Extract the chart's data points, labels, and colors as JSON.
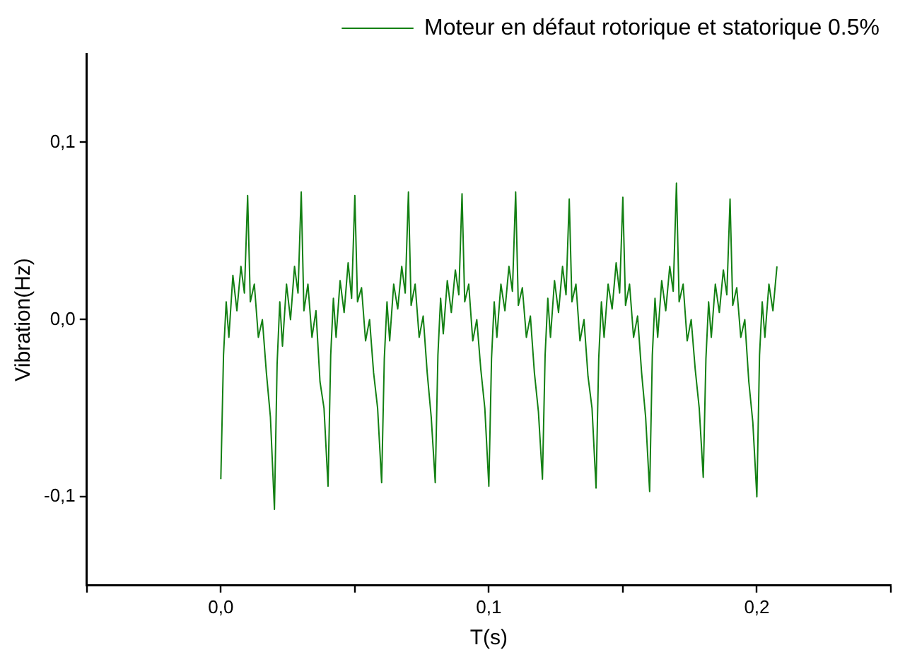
{
  "chart_data": {
    "type": "line",
    "xlabel": "T(s)",
    "ylabel": "Vibration(Hz)",
    "xlim": [
      -0.05,
      0.25
    ],
    "xticks": [
      {
        "value": -0.05,
        "label": null
      },
      {
        "value": 0,
        "label": "0,0"
      },
      {
        "value": 0.05,
        "label": null
      },
      {
        "value": 0.1,
        "label": "0,1"
      },
      {
        "value": 0.15,
        "label": null
      },
      {
        "value": 0.2,
        "label": "0,2"
      },
      {
        "value": 0.25,
        "label": null
      }
    ],
    "ylim": [
      -0.15,
      0.15
    ],
    "yticks": [
      {
        "value": -0.1,
        "label": "-0,1"
      },
      {
        "value": 0,
        "label": "0,0"
      },
      {
        "value": 0.1,
        "label": "0,1"
      }
    ],
    "legend": "top right",
    "marker": "none",
    "line_style": "solid",
    "grid": false,
    "series": [
      {
        "name": "Moteur en défaut rotorique et statorique 0.5%",
        "color": "#138013",
        "x": [
          0,
          0.001,
          0.002,
          0.003,
          0.0045,
          0.006,
          0.0075,
          0.0088,
          0.01,
          0.011,
          0.0125,
          0.014,
          0.0155,
          0.017,
          0.0185,
          0.02,
          0.021,
          0.022,
          0.023,
          0.0245,
          0.026,
          0.0275,
          0.0288,
          0.03,
          0.031,
          0.0325,
          0.034,
          0.0355,
          0.037,
          0.0385,
          0.04,
          0.041,
          0.042,
          0.043,
          0.0445,
          0.046,
          0.0475,
          0.0488,
          0.05,
          0.051,
          0.0525,
          0.054,
          0.0555,
          0.057,
          0.0585,
          0.06,
          0.061,
          0.062,
          0.063,
          0.0645,
          0.066,
          0.0675,
          0.0688,
          0.07,
          0.071,
          0.0725,
          0.074,
          0.0755,
          0.077,
          0.0785,
          0.08,
          0.081,
          0.082,
          0.083,
          0.0845,
          0.086,
          0.0875,
          0.0888,
          0.09,
          0.091,
          0.0925,
          0.094,
          0.0955,
          0.097,
          0.0985,
          0.1,
          0.101,
          0.102,
          0.103,
          0.1045,
          0.106,
          0.1075,
          0.1088,
          0.11,
          0.111,
          0.1125,
          0.114,
          0.1155,
          0.117,
          0.1185,
          0.12,
          0.121,
          0.122,
          0.123,
          0.1245,
          0.126,
          0.1275,
          0.1288,
          0.13,
          0.131,
          0.1325,
          0.134,
          0.1355,
          0.137,
          0.1385,
          0.14,
          0.141,
          0.142,
          0.143,
          0.1445,
          0.146,
          0.1475,
          0.1488,
          0.15,
          0.151,
          0.1525,
          0.154,
          0.1555,
          0.157,
          0.1585,
          0.16,
          0.161,
          0.162,
          0.163,
          0.1645,
          0.166,
          0.1675,
          0.1688,
          0.17,
          0.171,
          0.1725,
          0.174,
          0.1755,
          0.177,
          0.1785,
          0.18,
          0.181,
          0.182,
          0.183,
          0.1845,
          0.186,
          0.1875,
          0.1888,
          0.19,
          0.191,
          0.1925,
          0.194,
          0.1955,
          0.197,
          0.1985,
          0.2,
          0.201,
          0.202,
          0.203,
          0.2045,
          0.206,
          0.2075
        ],
        "values": [
          -0.09,
          -0.02,
          0.01,
          -0.01,
          0.025,
          0.005,
          0.03,
          0.015,
          0.07,
          0.01,
          0.02,
          -0.01,
          0.0,
          -0.03,
          -0.055,
          -0.107,
          -0.025,
          0.01,
          -0.015,
          0.02,
          0.0,
          0.03,
          0.015,
          0.072,
          0.005,
          0.02,
          -0.01,
          0.005,
          -0.035,
          -0.05,
          -0.094,
          -0.02,
          0.012,
          -0.01,
          0.022,
          0.004,
          0.032,
          0.012,
          0.07,
          0.01,
          0.018,
          -0.012,
          0.0,
          -0.03,
          -0.05,
          -0.092,
          -0.022,
          0.01,
          -0.012,
          0.02,
          0.006,
          0.03,
          0.015,
          0.072,
          0.008,
          0.02,
          -0.01,
          0.002,
          -0.03,
          -0.055,
          -0.092,
          -0.02,
          0.012,
          -0.008,
          0.022,
          0.004,
          0.028,
          0.014,
          0.071,
          0.01,
          0.02,
          -0.012,
          0.0,
          -0.028,
          -0.05,
          -0.094,
          -0.022,
          0.01,
          -0.01,
          0.02,
          0.005,
          0.03,
          0.016,
          0.072,
          0.008,
          0.018,
          -0.01,
          0.002,
          -0.03,
          -0.052,
          -0.09,
          -0.02,
          0.012,
          -0.01,
          0.022,
          0.004,
          0.03,
          0.014,
          0.068,
          0.01,
          0.02,
          -0.012,
          0.0,
          -0.032,
          -0.05,
          -0.095,
          -0.022,
          0.01,
          -0.01,
          0.02,
          0.006,
          0.032,
          0.015,
          0.069,
          0.008,
          0.02,
          -0.01,
          0.002,
          -0.03,
          -0.055,
          -0.097,
          -0.02,
          0.012,
          -0.01,
          0.022,
          0.005,
          0.03,
          0.016,
          0.077,
          0.01,
          0.02,
          -0.012,
          0.0,
          -0.028,
          -0.05,
          -0.089,
          -0.022,
          0.01,
          -0.01,
          0.02,
          0.004,
          0.028,
          0.014,
          0.068,
          0.008,
          0.018,
          -0.01,
          0.0,
          -0.035,
          -0.058,
          -0.1,
          -0.02,
          0.01,
          -0.01,
          0.02,
          0.005,
          0.03
        ]
      }
    ]
  }
}
